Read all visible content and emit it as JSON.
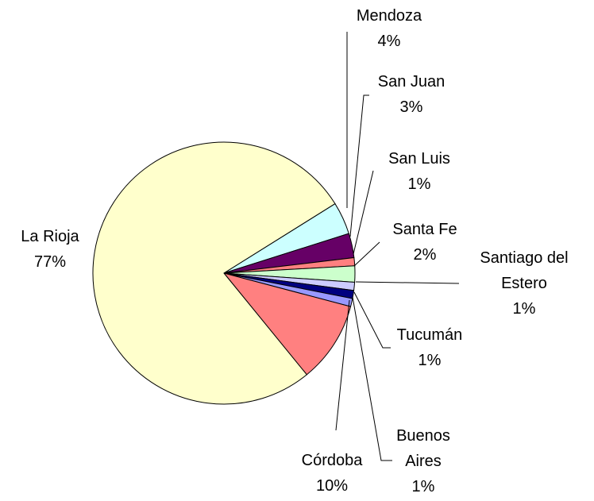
{
  "chart_data": {
    "type": "pie",
    "categories": [
      "Mendoza",
      "San Juan",
      "San Luis",
      "Santa Fe",
      "Santiago del Estero",
      "Tucumán",
      "Buenos Aires",
      "Córdoba",
      "La Rioja"
    ],
    "values": [
      4,
      3,
      1,
      2,
      1,
      1,
      1,
      10,
      77
    ],
    "value_labels": [
      "4%",
      "3%",
      "1%",
      "2%",
      "1%",
      "1%",
      "1%",
      "10%",
      "77%"
    ],
    "colors": [
      "#ccffff",
      "#660066",
      "#ff8080",
      "#ccffcc",
      "#ccccff",
      "#000080",
      "#9999ff",
      "#ff8080",
      "#ffffcc"
    ]
  }
}
